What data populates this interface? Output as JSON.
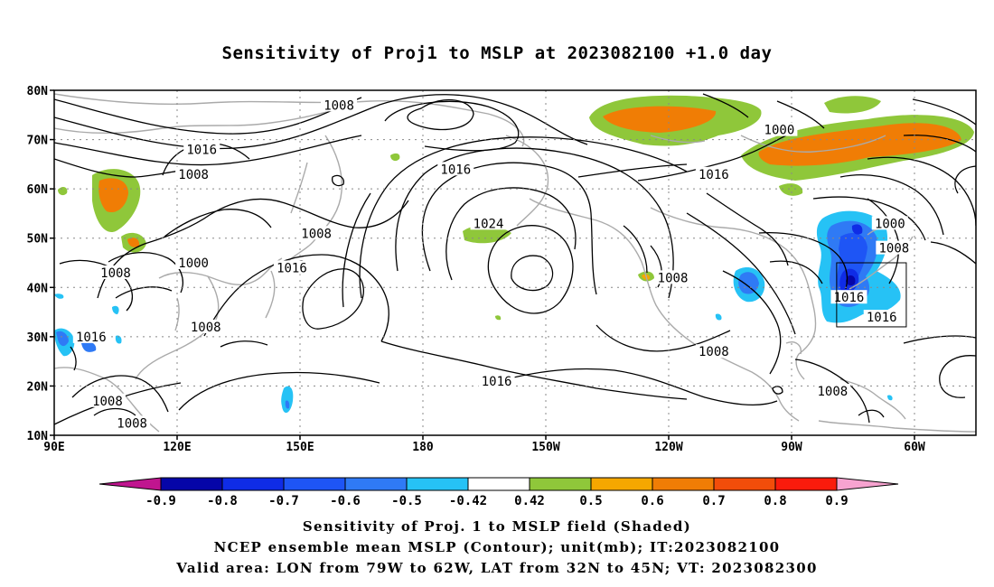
{
  "title": "Sensitivity of Proj1 to MSLP at 2023082100 +1.0 day",
  "lat_labels": [
    "80N",
    "70N",
    "60N",
    "50N",
    "40N",
    "30N",
    "20N",
    "10N"
  ],
  "lon_labels": [
    "90E",
    "120E",
    "150E",
    "180",
    "150W",
    "120W",
    "90W",
    "60W"
  ],
  "extent": {
    "lon_min": 90,
    "lon_max": 315,
    "lat_min": 10,
    "lat_max": 80
  },
  "contour_labels": [
    {
      "text": "1008",
      "lon": 159.5,
      "lat": 77
    },
    {
      "text": "1016",
      "lon": 126,
      "lat": 68
    },
    {
      "text": "1008",
      "lon": 124,
      "lat": 63
    },
    {
      "text": "1008",
      "lon": 105,
      "lat": 43
    },
    {
      "text": "1000",
      "lon": 124,
      "lat": 45
    },
    {
      "text": "1008",
      "lon": 154,
      "lat": 51
    },
    {
      "text": "1008",
      "lon": 127,
      "lat": 32
    },
    {
      "text": "1016",
      "lon": 148,
      "lat": 44
    },
    {
      "text": "1016",
      "lon": 188,
      "lat": 64
    },
    {
      "text": "1024",
      "lon": 196,
      "lat": 53
    },
    {
      "text": "1008",
      "lon": 241,
      "lat": 42
    },
    {
      "text": "1016",
      "lon": 251,
      "lat": 63
    },
    {
      "text": "1000",
      "lon": 267,
      "lat": 72
    },
    {
      "text": "1000",
      "lon": 294,
      "lat": 53
    },
    {
      "text": "1008",
      "lon": 295,
      "lat": 48
    },
    {
      "text": "1016",
      "lon": 284,
      "lat": 38
    },
    {
      "text": "1016",
      "lon": 292,
      "lat": 34
    },
    {
      "text": "1016",
      "lon": 99,
      "lat": 30
    },
    {
      "text": "1008",
      "lon": 103,
      "lat": 17
    },
    {
      "text": "1008",
      "lon": 109,
      "lat": 12.5
    },
    {
      "text": "1016",
      "lon": 198,
      "lat": 21
    },
    {
      "text": "1008",
      "lon": 251,
      "lat": 27
    },
    {
      "text": "1008",
      "lon": 280,
      "lat": 19
    }
  ],
  "box": {
    "lon_from": 281,
    "lon_to": 298,
    "lat_from": 32,
    "lat_to": 45
  },
  "colorbar": {
    "low_tip": "#c0158f",
    "high_tip": "#f7a3d0",
    "colors": [
      "#0505a8",
      "#0f2ce6",
      "#1e55f5",
      "#2f7af5",
      "#26c2f5",
      "#ffffff",
      "#8fc73a",
      "#f5a700",
      "#f07d05",
      "#f24d0a",
      "#fa1b0c"
    ],
    "tick_labels": [
      "-0.9",
      "-0.8",
      "-0.7",
      "-0.6",
      "-0.5",
      "-0.42",
      "0.42",
      "0.5",
      "0.6",
      "0.7",
      "0.8",
      "0.9"
    ]
  },
  "footer": {
    "line1": "Sensitivity of Proj. 1 to MSLP field (Shaded)",
    "line2": "NCEP ensemble mean MSLP (Contour); unit(mb); IT:2023082100",
    "line3": "Valid area: LON from 79W to 62W, LAT from 32N to 45N; VT: 2023082300"
  }
}
